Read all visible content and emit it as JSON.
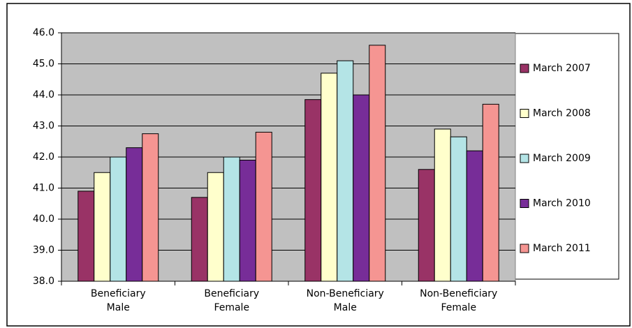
{
  "chart_data": {
    "type": "bar",
    "categories": [
      "Beneficiary Male",
      "Beneficiary Female",
      "Non-Beneficiary Male",
      "Non-Beneficiary Female"
    ],
    "series": [
      {
        "name": "March 2007",
        "color": "#993366",
        "values": [
          40.9,
          40.7,
          43.85,
          41.6
        ]
      },
      {
        "name": "March 2008",
        "color": "#ffffcc",
        "values": [
          41.5,
          41.5,
          44.7,
          42.9
        ]
      },
      {
        "name": "March 2009",
        "color": "#b4e4e6",
        "values": [
          42.0,
          42.0,
          45.1,
          42.65
        ]
      },
      {
        "name": "March 2010",
        "color": "#772d98",
        "values": [
          42.3,
          41.9,
          44.0,
          42.2
        ]
      },
      {
        "name": "March 2011",
        "color": "#f59592",
        "values": [
          42.75,
          42.8,
          45.6,
          43.7
        ]
      }
    ],
    "ylim": [
      38,
      46
    ],
    "yticks": [
      {
        "value": 38,
        "label": "38.0"
      },
      {
        "value": 39,
        "label": "39.0"
      },
      {
        "value": 40,
        "label": "40.0"
      },
      {
        "value": 41,
        "label": "41.0"
      },
      {
        "value": 42,
        "label": "42.0"
      },
      {
        "value": 43,
        "label": "43.0"
      },
      {
        "value": 44,
        "label": "44.0"
      },
      {
        "value": 45,
        "label": "45.0"
      },
      {
        "value": 46,
        "label": "46.0"
      }
    ],
    "grid": true,
    "legend": "right",
    "plot_background": "#c0c0c0"
  }
}
